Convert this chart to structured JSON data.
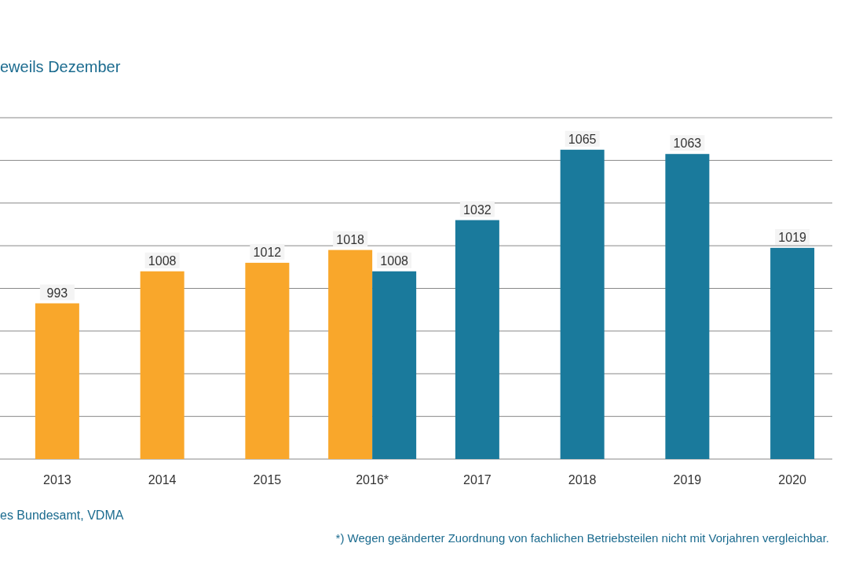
{
  "chart_data": {
    "type": "bar",
    "subtitle": "eweils Dezember",
    "categories": [
      "2013",
      "2014",
      "2015",
      "2016*",
      "2017",
      "2018",
      "2019",
      "2020"
    ],
    "series": [
      {
        "color": "#f9a72b",
        "values": [
          993,
          1008,
          1012,
          1018,
          null,
          null,
          null,
          null
        ]
      },
      {
        "color": "#1a7a9c",
        "values": [
          null,
          null,
          null,
          1008,
          1032,
          1065,
          1063,
          1019
        ]
      }
    ],
    "ylim": [
      920,
      1080
    ],
    "yticks": [
      {
        "value": 920,
        "label": null
      },
      {
        "value": 940,
        "label": null
      },
      {
        "value": 960,
        "label": null
      },
      {
        "value": 980,
        "label": null
      },
      {
        "value": 1000,
        "label": null
      },
      {
        "value": 1020,
        "label": null
      },
      {
        "value": 1040,
        "label": null
      },
      {
        "value": 1060,
        "label": null
      },
      {
        "value": 1080,
        "label": null
      }
    ],
    "tick_labels": "x",
    "grid": "y",
    "data_labels": true,
    "annotations": [
      "es Bundesamt, VDMA",
      "*) Wegen geänderter Zuordnung von fachlichen Betriebsteilen nicht mit Vorjahren vergleichbar."
    ]
  }
}
